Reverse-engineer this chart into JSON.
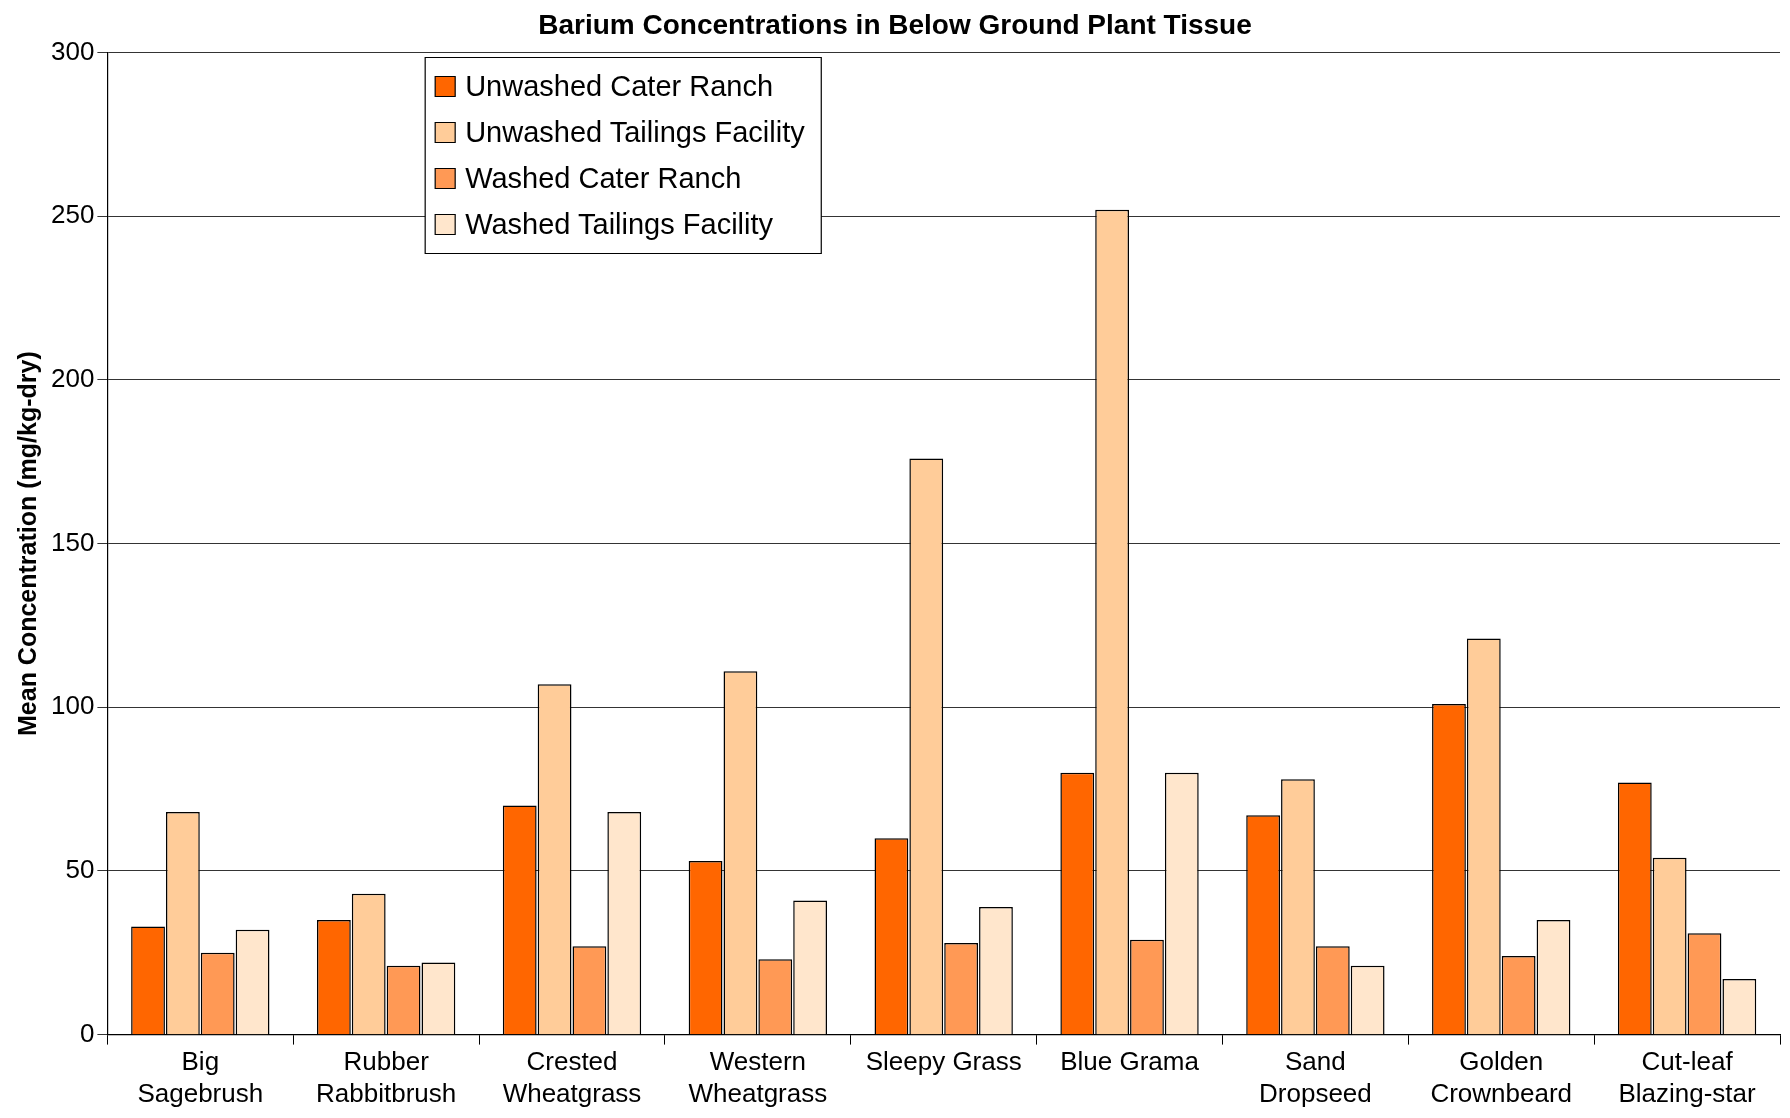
{
  "chart_data": {
    "type": "bar",
    "title": "Barium Concentrations in Below Ground Plant Tissue",
    "ylabel": "Mean Concentration (mg/kg-dry)",
    "categories": [
      "Big Sagebrush",
      "Rubber Rabbitbrush",
      "Crested Wheatgrass",
      "Western Wheatgrass",
      "Sleepy Grass",
      "Blue Grama",
      "Sand Dropseed",
      "Golden Crownbeard",
      "Cut-leaf Blazing-star"
    ],
    "series": [
      {
        "name": "Unwashed Cater Ranch",
        "color": "#ff6600",
        "values": [
          33,
          35,
          70,
          53,
          60,
          80,
          67,
          101,
          77
        ]
      },
      {
        "name": "Unwashed Tailings Facility",
        "color": "#ffcc99",
        "values": [
          68,
          43,
          107,
          111,
          176,
          252,
          78,
          121,
          54
        ]
      },
      {
        "name": "Washed Cater Ranch",
        "color": "#ff9955",
        "values": [
          25,
          21,
          27,
          23,
          28,
          29,
          27,
          24,
          31
        ]
      },
      {
        "name": "Washed Tailings Facility",
        "color": "#ffe6cc",
        "values": [
          32,
          22,
          68,
          41,
          39,
          80,
          21,
          35,
          17
        ]
      }
    ],
    "ylim": [
      0,
      300
    ],
    "yticks": [
      0,
      50,
      100,
      150,
      200,
      250,
      300
    ],
    "grid": "y",
    "legend": "top left"
  }
}
